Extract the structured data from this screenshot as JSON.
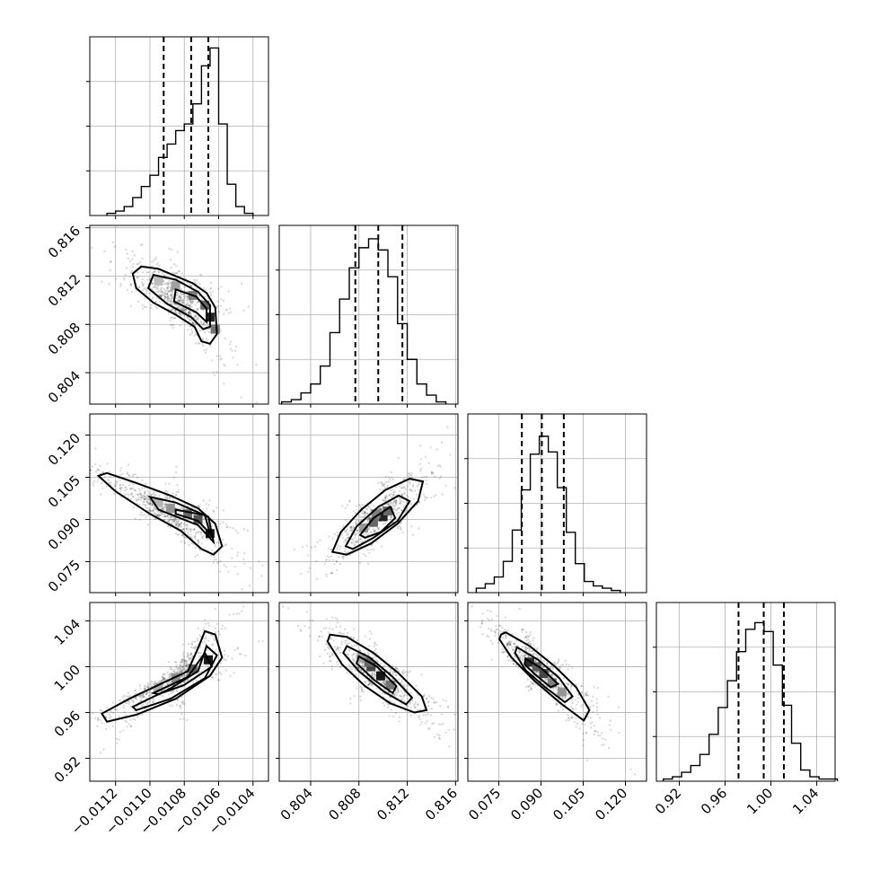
{
  "chart_data": {
    "type": "corner",
    "grid": true,
    "parameters": [
      {
        "ticks": [
          -0.0112,
          -0.011,
          -0.0108,
          -0.0106,
          -0.0104
        ],
        "tick_labels": [
          "−0.0112",
          "−0.0110",
          "−0.0108",
          "−0.0106",
          "−0.0104"
        ],
        "range": [
          -0.01135,
          -0.01031
        ],
        "quantiles": [
          -0.01092,
          -0.01076,
          -0.01066
        ],
        "hist_bins": [
          -0.01125,
          -0.0112,
          -0.01115,
          -0.0111,
          -0.01105,
          -0.011,
          -0.01095,
          -0.0109,
          -0.01085,
          -0.0108,
          -0.01075,
          -0.0107,
          -0.01065,
          -0.0106,
          -0.01055,
          -0.0105,
          -0.01045,
          -0.0104
        ],
        "hist_heights": [
          0.01,
          0.02,
          0.04,
          0.08,
          0.13,
          0.18,
          0.26,
          0.32,
          0.38,
          0.41,
          0.5,
          0.67,
          0.75,
          0.41,
          0.14,
          0.04,
          0.01
        ]
      },
      {
        "ticks": [
          0.804,
          0.808,
          0.812,
          0.816
        ],
        "tick_labels": [
          "0.804",
          "0.808",
          "0.812",
          "0.816"
        ],
        "range": [
          0.8014,
          0.8162
        ],
        "quantiles": [
          0.8077,
          0.8096,
          0.8116
        ],
        "hist_bins": [
          0.8016,
          0.8024,
          0.8032,
          0.804,
          0.8048,
          0.8056,
          0.8064,
          0.8072,
          0.808,
          0.8088,
          0.8096,
          0.8104,
          0.8112,
          0.812,
          0.8128,
          0.8136,
          0.8144,
          0.8152
        ],
        "hist_heights": [
          0.01,
          0.02,
          0.05,
          0.09,
          0.17,
          0.32,
          0.47,
          0.61,
          0.7,
          0.74,
          0.69,
          0.57,
          0.36,
          0.2,
          0.09,
          0.04,
          0.01
        ]
      },
      {
        "ticks": [
          0.075,
          0.09,
          0.105,
          0.12
        ],
        "tick_labels": [
          "0.075",
          "0.090",
          "0.105",
          "0.120"
        ],
        "range": [
          0.064,
          0.1275
        ],
        "quantiles": [
          0.0832,
          0.0903,
          0.0981
        ],
        "hist_bins": [
          0.067,
          0.0702,
          0.0734,
          0.0766,
          0.0798,
          0.083,
          0.0862,
          0.0894,
          0.0926,
          0.0958,
          0.099,
          0.1022,
          0.1054,
          0.1086,
          0.1118,
          0.115,
          0.1182
        ],
        "hist_heights": [
          0.02,
          0.04,
          0.07,
          0.14,
          0.28,
          0.46,
          0.62,
          0.7,
          0.63,
          0.47,
          0.27,
          0.13,
          0.05,
          0.03,
          0.02,
          0.01
        ]
      },
      {
        "ticks": [
          0.92,
          0.96,
          1.0,
          1.04
        ],
        "tick_labels": [
          "0.92",
          "0.96",
          "1.00",
          "1.04"
        ],
        "range": [
          0.9,
          1.056
        ],
        "quantiles": [
          0.9717,
          0.9937,
          1.0113
        ],
        "hist_bins": [
          0.906,
          0.914,
          0.922,
          0.93,
          0.938,
          0.946,
          0.954,
          0.962,
          0.97,
          0.978,
          0.986,
          0.994,
          1.002,
          1.01,
          1.018,
          1.026,
          1.034,
          1.042,
          1.05,
          1.058
        ],
        "hist_heights": [
          0.01,
          0.02,
          0.04,
          0.07,
          0.12,
          0.21,
          0.33,
          0.45,
          0.58,
          0.68,
          0.71,
          0.67,
          0.52,
          0.34,
          0.17,
          0.05,
          0.02,
          0.01,
          0.01
        ]
      }
    ],
    "hist_ylim": [
      0,
      0.8
    ],
    "pairs": [
      {
        "x_param": 0,
        "y_param": 1,
        "center": [
          -0.01074,
          0.8094
        ],
        "heat_cells": [
          [
            -0.01095,
            0.8116,
            0.18
          ],
          [
            -0.01085,
            0.8112,
            0.3
          ],
          [
            -0.01075,
            0.8104,
            0.45
          ],
          [
            -0.01068,
            0.8096,
            0.55
          ],
          [
            -0.01065,
            0.8086,
            0.85
          ],
          [
            -0.01062,
            0.8076,
            0.5
          ]
        ],
        "contours": [
          [
            [
              -0.01105,
              0.8128
            ],
            [
              -0.01095,
              0.8126
            ],
            [
              -0.01085,
              0.812
            ],
            [
              -0.01075,
              0.8114
            ],
            [
              -0.01067,
              0.8106
            ],
            [
              -0.01062,
              0.8094
            ],
            [
              -0.01061,
              0.8072
            ],
            [
              -0.01065,
              0.8064
            ],
            [
              -0.0107,
              0.8066
            ],
            [
              -0.01074,
              0.8078
            ],
            [
              -0.01085,
              0.8088
            ],
            [
              -0.01098,
              0.8098
            ],
            [
              -0.01108,
              0.811
            ],
            [
              -0.0111,
              0.8122
            ]
          ],
          [
            [
              -0.01098,
              0.8121
            ],
            [
              -0.01085,
              0.8117
            ],
            [
              -0.01072,
              0.8107
            ],
            [
              -0.01065,
              0.8096
            ],
            [
              -0.01065,
              0.8078
            ],
            [
              -0.01069,
              0.8076
            ],
            [
              -0.01076,
              0.8086
            ],
            [
              -0.0109,
              0.8097
            ],
            [
              -0.01101,
              0.811
            ]
          ],
          [
            [
              -0.01085,
              0.8109
            ],
            [
              -0.01073,
              0.8103
            ],
            [
              -0.01067,
              0.8093
            ],
            [
              -0.01067,
              0.8082
            ],
            [
              -0.01073,
              0.809
            ],
            [
              -0.01086,
              0.8099
            ]
          ]
        ]
      },
      {
        "x_param": 0,
        "y_param": 2,
        "center": [
          -0.01076,
          0.0905
        ],
        "heat_cells": [
          [
            -0.01095,
            0.096,
            0.22
          ],
          [
            -0.01088,
            0.094,
            0.35
          ],
          [
            -0.01078,
            0.092,
            0.55
          ],
          [
            -0.01072,
            0.09,
            0.65
          ],
          [
            -0.01065,
            0.085,
            0.9
          ]
        ],
        "contours": [
          [
            [
              -0.01125,
              0.1065
            ],
            [
              -0.01108,
              0.103
            ],
            [
              -0.01088,
              0.0985
            ],
            [
              -0.01072,
              0.094
            ],
            [
              -0.01062,
              0.0885
            ],
            [
              -0.01058,
              0.0805
            ],
            [
              -0.01063,
              0.0775
            ],
            [
              -0.0107,
              0.0795
            ],
            [
              -0.01082,
              0.086
            ],
            [
              -0.011,
              0.092
            ],
            [
              -0.0112,
              0.1
            ],
            [
              -0.0113,
              0.1055
            ]
          ],
          [
            [
              -0.011,
              0.098
            ],
            [
              -0.01085,
              0.096
            ],
            [
              -0.01066,
              0.091
            ],
            [
              -0.01063,
              0.082
            ],
            [
              -0.01072,
              0.088
            ],
            [
              -0.01095,
              0.0935
            ]
          ],
          [
            [
              -0.01085,
              0.0935
            ],
            [
              -0.01068,
              0.0915
            ],
            [
              -0.01065,
              0.085
            ],
            [
              -0.01072,
              0.0895
            ],
            [
              -0.01085,
              0.092
            ]
          ]
        ]
      },
      {
        "x_param": 0,
        "y_param": 3,
        "center": [
          -0.01074,
          0.998
        ],
        "heat_cells": [
          [
            -0.01095,
            0.982,
            0.25
          ],
          [
            -0.01085,
            0.99,
            0.4
          ],
          [
            -0.01075,
            0.998,
            0.6
          ],
          [
            -0.01066,
            1.006,
            0.9
          ]
        ],
        "contours": [
          [
            [
              -0.01128,
              0.959
            ],
            [
              -0.01112,
              0.972
            ],
            [
              -0.01095,
              0.984
            ],
            [
              -0.01078,
              0.996
            ],
            [
              -0.01072,
              1.016
            ],
            [
              -0.01068,
              1.031
            ],
            [
              -0.01062,
              1.028
            ],
            [
              -0.01058,
              1.008
            ],
            [
              -0.01065,
              0.992
            ],
            [
              -0.01085,
              0.972
            ],
            [
              -0.01108,
              0.958
            ],
            [
              -0.01125,
              0.952
            ]
          ],
          [
            [
              -0.0111,
              0.965
            ],
            [
              -0.01088,
              0.981
            ],
            [
              -0.01072,
              0.996
            ],
            [
              -0.01067,
              1.018
            ],
            [
              -0.01061,
              1.01
            ],
            [
              -0.01068,
              0.99
            ],
            [
              -0.01088,
              0.972
            ],
            [
              -0.01108,
              0.962
            ]
          ],
          [
            [
              -0.01098,
              0.977
            ],
            [
              -0.01078,
              0.991
            ],
            [
              -0.01068,
              1.012
            ],
            [
              -0.01064,
              1.0
            ],
            [
              -0.0108,
              0.984
            ],
            [
              -0.01095,
              0.976
            ]
          ]
        ]
      },
      {
        "x_param": 1,
        "y_param": 2,
        "center": [
          0.8096,
          0.0905
        ],
        "heat_cells": [
          [
            0.8084,
            0.087,
            0.35
          ],
          [
            0.8092,
            0.089,
            0.55
          ],
          [
            0.81,
            0.091,
            0.85
          ],
          [
            0.8104,
            0.093,
            0.55
          ],
          [
            0.8094,
            0.092,
            0.45
          ]
        ],
        "contours": [
          [
            [
              0.8058,
              0.0785
            ],
            [
              0.8065,
              0.0855
            ],
            [
              0.8082,
              0.0935
            ],
            [
              0.8102,
              0.1005
            ],
            [
              0.8122,
              0.1045
            ],
            [
              0.8133,
              0.1035
            ],
            [
              0.8129,
              0.0965
            ],
            [
              0.8112,
              0.0885
            ],
            [
              0.809,
              0.0815
            ],
            [
              0.807,
              0.0775
            ]
          ],
          [
            [
              0.8069,
              0.0805
            ],
            [
              0.8078,
              0.0875
            ],
            [
              0.8096,
              0.0945
            ],
            [
              0.8113,
              0.0985
            ],
            [
              0.8122,
              0.0965
            ],
            [
              0.8112,
              0.0895
            ],
            [
              0.8092,
              0.0835
            ],
            [
              0.8075,
              0.0795
            ]
          ],
          [
            [
              0.8081,
              0.0845
            ],
            [
              0.8092,
              0.0905
            ],
            [
              0.8106,
              0.0945
            ],
            [
              0.811,
              0.0905
            ],
            [
              0.8098,
              0.0855
            ],
            [
              0.8085,
              0.0835
            ]
          ]
        ]
      },
      {
        "x_param": 1,
        "y_param": 3,
        "center": [
          0.8096,
          0.994
        ],
        "heat_cells": [
          [
            0.8082,
            1.008,
            0.3
          ],
          [
            0.809,
            1.0,
            0.7
          ],
          [
            0.8098,
            0.992,
            0.9
          ],
          [
            0.8106,
            0.984,
            0.5
          ],
          [
            0.8088,
            1.004,
            0.55
          ]
        ],
        "contours": [
          [
            [
              0.8056,
              1.028
            ],
            [
              0.807,
              1.026
            ],
            [
              0.8092,
              1.012
            ],
            [
              0.8112,
              0.995
            ],
            [
              0.8132,
              0.974
            ],
            [
              0.8136,
              0.962
            ],
            [
              0.8126,
              0.96
            ],
            [
              0.8106,
              0.968
            ],
            [
              0.8085,
              0.983
            ],
            [
              0.8066,
              1.002
            ],
            [
              0.8054,
              1.022
            ]
          ],
          [
            [
              0.807,
              1.018
            ],
            [
              0.8089,
              1.008
            ],
            [
              0.8108,
              0.991
            ],
            [
              0.8124,
              0.973
            ],
            [
              0.8119,
              0.967
            ],
            [
              0.8101,
              0.978
            ],
            [
              0.808,
              0.996
            ],
            [
              0.8067,
              1.012
            ]
          ],
          [
            [
              0.808,
              1.009
            ],
            [
              0.8095,
              1.0
            ],
            [
              0.8111,
              0.983
            ],
            [
              0.8108,
              0.977
            ],
            [
              0.8093,
              0.988
            ],
            [
              0.8078,
              1.003
            ]
          ]
        ]
      },
      {
        "x_param": 2,
        "y_param": 3,
        "center": [
          0.0905,
          0.995
        ],
        "heat_cells": [
          [
            0.086,
            1.004,
            0.8
          ],
          [
            0.0885,
            1.0,
            0.6
          ],
          [
            0.091,
            0.994,
            0.7
          ],
          [
            0.094,
            0.986,
            0.45
          ],
          [
            0.0975,
            0.978,
            0.35
          ]
        ],
        "contours": [
          [
            [
              0.0758,
              1.028
            ],
            [
              0.0775,
              1.03
            ],
            [
              0.086,
              1.018
            ],
            [
              0.095,
              1.0
            ],
            [
              0.1025,
              0.982
            ],
            [
              0.1072,
              0.962
            ],
            [
              0.1052,
              0.953
            ],
            [
              0.097,
              0.968
            ],
            [
              0.0875,
              0.988
            ],
            [
              0.0795,
              1.008
            ],
            [
              0.0752,
              1.024
            ]
          ],
          [
            [
              0.0815,
              1.017
            ],
            [
              0.089,
              1.006
            ],
            [
              0.0965,
              0.99
            ],
            [
              0.1012,
              0.974
            ],
            [
              0.0985,
              0.969
            ],
            [
              0.0915,
              0.982
            ],
            [
              0.0845,
              0.997
            ],
            [
              0.0808,
              1.012
            ]
          ],
          [
            [
              0.0845,
              1.007
            ],
            [
              0.0905,
              0.998
            ],
            [
              0.096,
              0.985
            ],
            [
              0.0935,
              0.982
            ],
            [
              0.088,
              0.993
            ],
            [
              0.0842,
              1.002
            ]
          ]
        ]
      }
    ]
  }
}
